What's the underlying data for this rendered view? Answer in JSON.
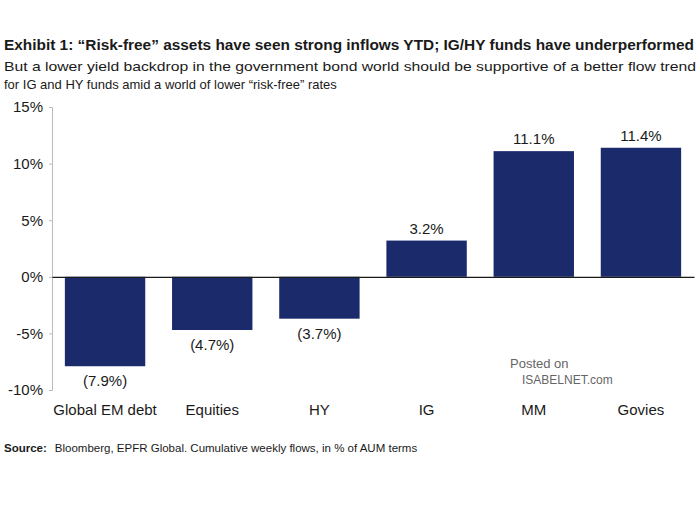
{
  "chart_data": {
    "type": "bar",
    "title": "Exhibit 1: “Risk-free” assets have seen strong inflows YTD; IG/HY funds have underperformed",
    "subtitle": [
      "But a lower yield backdrop in the government bond world should be supportive of a better flow trend",
      "for IG and HY funds amid a world of lower “risk-free” rates"
    ],
    "categories": [
      "Global EM debt",
      "Equities",
      "HY",
      "IG",
      "MM",
      "Govies"
    ],
    "values": [
      -7.9,
      -4.7,
      -3.7,
      3.2,
      11.1,
      11.4
    ],
    "value_labels": [
      "(7.9%)",
      "(4.7%)",
      "(3.7%)",
      "3.2%",
      "11.1%",
      "11.4%"
    ],
    "data_labels": true,
    "color": "#1b2a6b",
    "ylim": [
      -10,
      15
    ],
    "yticks": [
      {
        "value": -10,
        "label": "-10%"
      },
      {
        "value": -5,
        "label": "-5%"
      },
      {
        "value": 0,
        "label": "0%"
      },
      {
        "value": 5,
        "label": "5%"
      },
      {
        "value": 10,
        "label": "10%"
      },
      {
        "value": 15,
        "label": "15%"
      }
    ],
    "grid": false,
    "source_label": "Source:",
    "source": "Bloomberg, EPFR Global. Cumulative weekly flows, in % of AUM terms",
    "watermark": [
      "Posted on",
      "ISABELNET.com"
    ]
  }
}
